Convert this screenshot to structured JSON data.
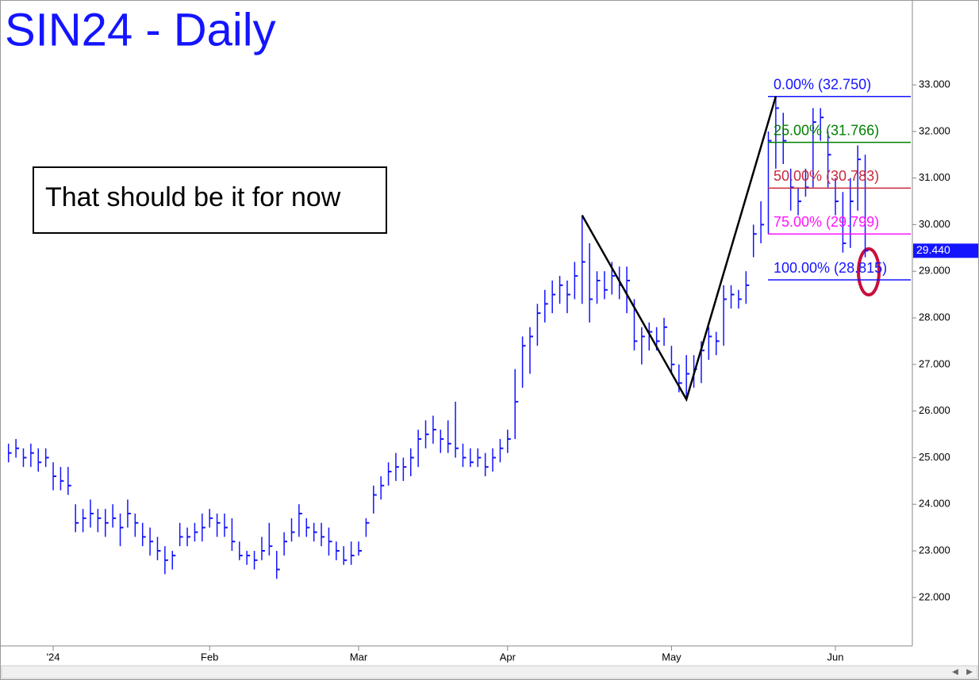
{
  "chart_data": {
    "type": "ohlc",
    "title": "SIN24 - Daily",
    "annotation": "That should be it for now",
    "color": "#1414ff",
    "categories": [
      null,
      null,
      null,
      null,
      null,
      null,
      "'24",
      null,
      null,
      null,
      null,
      null,
      null,
      null,
      null,
      null,
      null,
      null,
      null,
      null,
      null,
      null,
      null,
      null,
      null,
      null,
      null,
      "Feb",
      null,
      null,
      null,
      null,
      null,
      null,
      null,
      null,
      null,
      null,
      null,
      null,
      null,
      null,
      null,
      null,
      null,
      null,
      null,
      "Mar",
      null,
      null,
      null,
      null,
      null,
      null,
      null,
      null,
      null,
      null,
      null,
      null,
      null,
      null,
      null,
      null,
      null,
      null,
      null,
      "Apr",
      null,
      null,
      null,
      null,
      null,
      null,
      null,
      null,
      null,
      null,
      null,
      null,
      null,
      null,
      null,
      null,
      null,
      null,
      null,
      null,
      null,
      "May",
      null,
      null,
      null,
      null,
      null,
      null,
      null,
      null,
      null,
      null,
      null,
      null,
      null,
      null,
      null,
      null,
      null,
      null,
      null,
      null,
      null,
      "Jun",
      null,
      null,
      null,
      null
    ],
    "high": [
      25.3,
      25.4,
      25.2,
      25.3,
      25.2,
      25.2,
      24.9,
      24.8,
      24.8,
      24.0,
      23.9,
      24.1,
      23.9,
      23.9,
      24.0,
      23.8,
      24.1,
      23.8,
      23.6,
      23.5,
      23.3,
      23.1,
      23.0,
      23.6,
      23.5,
      23.6,
      23.8,
      23.9,
      23.8,
      23.8,
      23.7,
      23.2,
      23.0,
      23.0,
      23.3,
      23.6,
      23.0,
      23.4,
      23.7,
      24.0,
      23.7,
      23.6,
      23.6,
      23.5,
      23.2,
      23.1,
      23.2,
      23.2,
      23.7,
      24.4,
      24.6,
      24.9,
      25.1,
      25.0,
      25.2,
      25.6,
      25.8,
      25.9,
      25.6,
      25.8,
      26.2,
      25.3,
      25.2,
      25.2,
      25.1,
      25.2,
      25.4,
      25.6,
      26.9,
      27.6,
      27.8,
      28.3,
      28.6,
      28.8,
      28.9,
      28.8,
      29.2,
      30.2,
      29.6,
      29.0,
      29.0,
      29.2,
      29.1,
      29.1,
      28.4,
      27.8,
      27.9,
      27.8,
      28.0,
      27.4,
      27.0,
      27.2,
      27.2,
      27.5,
      27.8,
      27.7,
      28.7,
      28.7,
      28.6,
      29.0,
      30.0,
      30.5,
      32.0,
      32.75,
      32.4,
      31.2,
      30.8,
      31.2,
      32.5,
      32.5,
      32.0,
      31.0,
      30.7,
      31.0,
      31.7,
      31.5
    ],
    "low": [
      24.9,
      25.0,
      24.8,
      24.8,
      24.7,
      24.8,
      24.3,
      24.3,
      24.2,
      23.4,
      23.4,
      23.5,
      23.4,
      23.3,
      23.5,
      23.1,
      23.5,
      23.3,
      23.1,
      22.9,
      22.8,
      22.5,
      22.6,
      23.1,
      23.1,
      23.2,
      23.2,
      23.5,
      23.3,
      23.3,
      23.0,
      22.8,
      22.7,
      22.6,
      22.8,
      22.9,
      22.4,
      22.9,
      23.2,
      23.3,
      23.3,
      23.2,
      23.1,
      22.9,
      22.8,
      22.7,
      22.7,
      22.9,
      23.3,
      23.8,
      24.1,
      24.4,
      24.5,
      24.5,
      24.6,
      24.8,
      25.2,
      25.3,
      25.1,
      25.1,
      25.0,
      24.8,
      24.8,
      24.8,
      24.6,
      24.7,
      24.9,
      25.1,
      25.4,
      26.5,
      26.8,
      27.4,
      27.9,
      28.1,
      28.3,
      28.1,
      28.4,
      28.3,
      27.9,
      28.3,
      28.4,
      28.5,
      28.4,
      28.1,
      27.3,
      27.0,
      27.3,
      27.3,
      27.4,
      26.8,
      26.4,
      26.25,
      26.5,
      26.6,
      27.1,
      27.2,
      27.4,
      28.2,
      28.2,
      28.3,
      29.3,
      29.6,
      29.8,
      31.2,
      31.3,
      30.3,
      30.2,
      30.6,
      30.8,
      31.8,
      30.8,
      30.2,
      29.4,
      29.5,
      30.3,
      29.3
    ],
    "close": [
      25.1,
      25.2,
      25.0,
      25.1,
      24.9,
      25.0,
      24.6,
      24.5,
      24.4,
      23.6,
      23.7,
      23.8,
      23.7,
      23.6,
      23.7,
      23.5,
      23.8,
      23.6,
      23.3,
      23.2,
      23.0,
      22.8,
      22.9,
      23.3,
      23.3,
      23.4,
      23.5,
      23.7,
      23.6,
      23.5,
      23.2,
      22.9,
      22.9,
      22.8,
      23.0,
      23.1,
      22.6,
      23.2,
      23.4,
      23.8,
      23.5,
      23.4,
      23.3,
      23.2,
      23.0,
      22.8,
      22.9,
      23.0,
      23.6,
      24.2,
      24.4,
      24.7,
      24.8,
      24.8,
      25.0,
      25.4,
      25.5,
      25.6,
      25.4,
      25.3,
      25.2,
      25.0,
      24.9,
      25.0,
      24.8,
      25.0,
      25.2,
      25.4,
      26.2,
      27.4,
      27.6,
      28.1,
      28.3,
      28.5,
      28.7,
      28.5,
      28.9,
      29.2,
      28.4,
      28.8,
      28.6,
      28.9,
      28.7,
      28.8,
      27.5,
      27.6,
      27.7,
      27.5,
      27.8,
      27.0,
      26.6,
      26.8,
      26.9,
      27.3,
      27.6,
      27.5,
      28.4,
      28.5,
      28.4,
      28.7,
      29.8,
      30.0,
      31.8,
      32.5,
      31.8,
      30.8,
      30.5,
      30.8,
      32.2,
      32.3,
      31.5,
      30.5,
      29.6,
      30.5,
      31.4,
      29.44
    ],
    "last_price_label": "29.440",
    "pattern": {
      "color": "#000000",
      "values": [
        30.2,
        26.25,
        32.75
      ]
    },
    "fib_levels": [
      {
        "label": "0.00% (32.750)",
        "value": 32.75,
        "color": "#1414ff"
      },
      {
        "label": "25.00% (31.766)",
        "value": 31.766,
        "color": "#008000"
      },
      {
        "label": "50.00% (30.783)",
        "value": 30.783,
        "color": "#c8283c"
      },
      {
        "label": "75.00% (29.799)",
        "value": 29.799,
        "color": "#ff14ff"
      },
      {
        "label": "100.00% (28.815)",
        "value": 28.815,
        "color": "#1414ff"
      }
    ],
    "ylim": [
      20.96,
      34.82
    ],
    "yticks": [
      {
        "value": 22,
        "label": "22.000"
      },
      {
        "value": 23,
        "label": "23.000"
      },
      {
        "value": 24,
        "label": "24.000"
      },
      {
        "value": 25,
        "label": "25.000"
      },
      {
        "value": 26,
        "label": "26.000"
      },
      {
        "value": 27,
        "label": "27.000"
      },
      {
        "value": 28,
        "label": "28.000"
      },
      {
        "value": 29,
        "label": "29.000"
      },
      {
        "value": 30,
        "label": "30.000"
      },
      {
        "value": 31,
        "label": "31.000"
      },
      {
        "value": 32,
        "label": "32.000"
      },
      {
        "value": 33,
        "label": "33.000"
      }
    ]
  }
}
